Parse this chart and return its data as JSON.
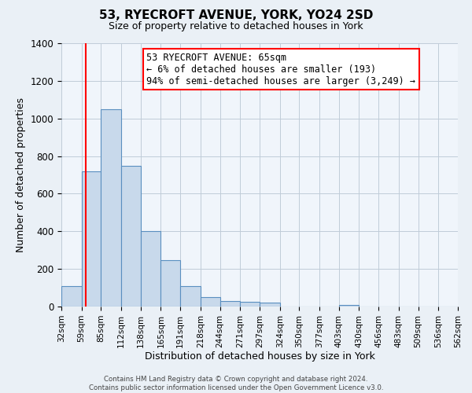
{
  "title1": "53, RYECROFT AVENUE, YORK, YO24 2SD",
  "title2": "Size of property relative to detached houses in York",
  "xlabel": "Distribution of detached houses by size in York",
  "ylabel": "Number of detached properties",
  "bin_labels": [
    "32sqm",
    "59sqm",
    "85sqm",
    "112sqm",
    "138sqm",
    "165sqm",
    "191sqm",
    "218sqm",
    "244sqm",
    "271sqm",
    "297sqm",
    "324sqm",
    "350sqm",
    "377sqm",
    "403sqm",
    "430sqm",
    "456sqm",
    "483sqm",
    "509sqm",
    "536sqm",
    "562sqm"
  ],
  "bin_edges": [
    32,
    59,
    85,
    112,
    138,
    165,
    191,
    218,
    244,
    271,
    297,
    324,
    350,
    377,
    403,
    430,
    456,
    483,
    509,
    536,
    562
  ],
  "bar_heights": [
    110,
    720,
    1050,
    750,
    400,
    245,
    110,
    50,
    30,
    25,
    20,
    0,
    0,
    0,
    10,
    0,
    0,
    0,
    0,
    0
  ],
  "bar_color": "#c8d9eb",
  "bar_edge_color": "#5a8fc0",
  "property_line_x": 65,
  "property_line_color": "red",
  "annotation_title": "53 RYECROFT AVENUE: 65sqm",
  "annotation_line1": "← 6% of detached houses are smaller (193)",
  "annotation_line2": "94% of semi-detached houses are larger (3,249) →",
  "annotation_box_color": "white",
  "annotation_box_edge": "red",
  "ylim": [
    0,
    1400
  ],
  "yticks": [
    0,
    200,
    400,
    600,
    800,
    1000,
    1200,
    1400
  ],
  "footnote1": "Contains HM Land Registry data © Crown copyright and database right 2024.",
  "footnote2": "Contains public sector information licensed under the Open Government Licence v3.0.",
  "bg_color": "#eaf0f6",
  "plot_bg_color": "#f0f5fb"
}
